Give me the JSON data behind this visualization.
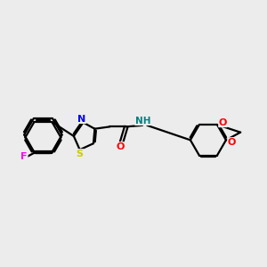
{
  "background_color": "#ececec",
  "bond_color": "#000000",
  "atom_colors": {
    "N_blue": "#0000ff",
    "N_teal": "#008080",
    "O": "#ff0000",
    "S": "#cccc00",
    "F": "#ff00ff",
    "C": "#000000"
  },
  "lw": 1.6
}
